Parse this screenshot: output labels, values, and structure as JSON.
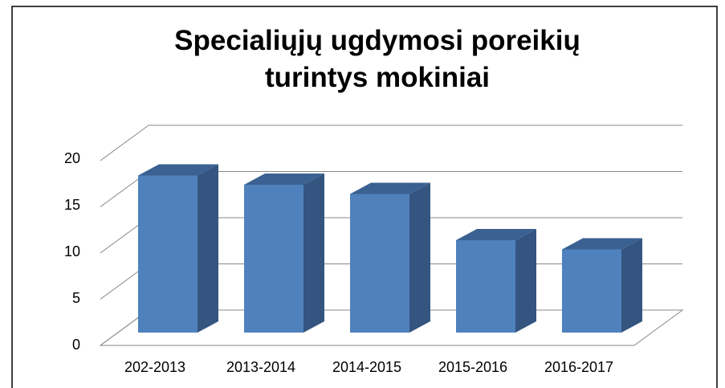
{
  "chart_data": {
    "type": "bar3d",
    "title": "Specialiųjų ugdymosi poreikių turintys mokiniai",
    "categories": [
      "202-2013",
      "2013-2014",
      "2014-2015",
      "2015-2016",
      "2016-2017"
    ],
    "values": [
      17,
      16,
      15,
      10,
      9
    ],
    "color": "#4f81bd",
    "ylim": [
      0,
      20
    ],
    "yticks": [
      0,
      5,
      10,
      15,
      20
    ],
    "grid": true
  }
}
